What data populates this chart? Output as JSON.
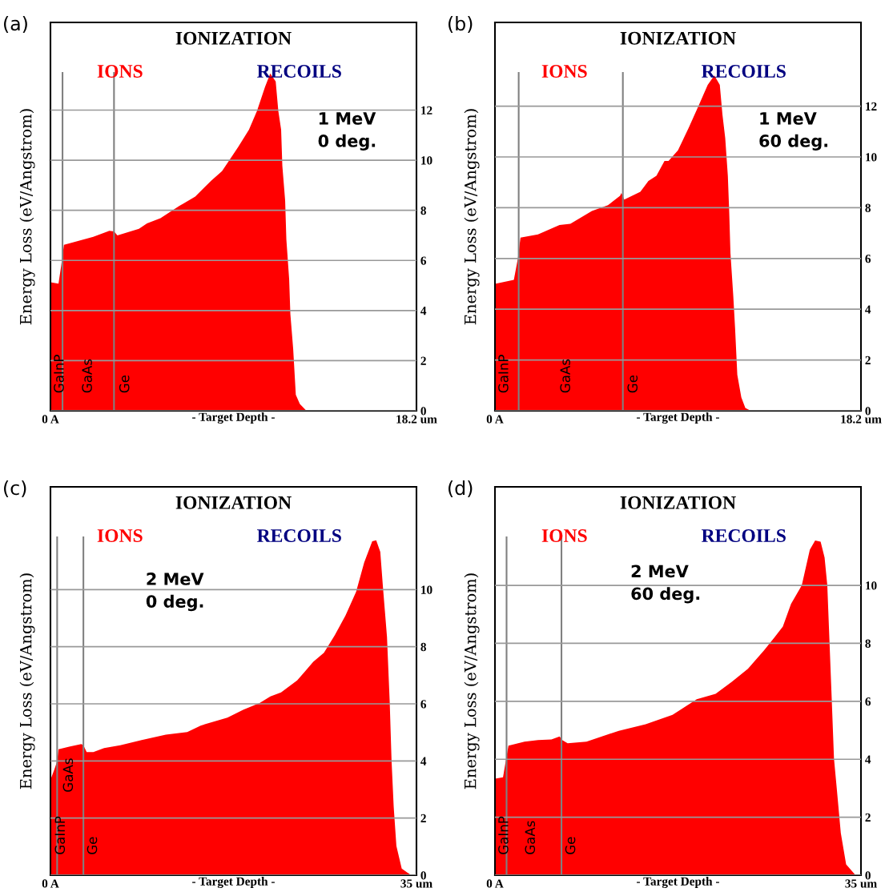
{
  "chart_data": [
    {
      "type": "area",
      "title": "IONIZATION",
      "xlabel": "- Target Depth -",
      "ylabel": "Energy Loss (eV/Angstrom)",
      "xlim": [
        0,
        18.2
      ],
      "xticks": [
        {
          "value": 0,
          "label": "0 A"
        },
        {
          "value": 18.2,
          "label": "18.2 um"
        }
      ],
      "ylim": [
        0,
        15.5
      ],
      "yticks": [
        0,
        2,
        4,
        6,
        8,
        10,
        12
      ],
      "grid": "y",
      "legend": "top",
      "series": [
        {
          "name": "IONS",
          "color": "#ff0000",
          "x": [
            0,
            0.4,
            0.53,
            0.67,
            0.93,
            2.13,
            2.93,
            3.16,
            3.33,
            4.4,
            4.8,
            5.47,
            6.4,
            7.2,
            8.0,
            8.53,
            8.93,
            9.33,
            9.87,
            10.27,
            10.67,
            10.93,
            11.2,
            11.33,
            11.47,
            11.53,
            11.67,
            11.73,
            11.87,
            11.93,
            12.07,
            12.2,
            12.4,
            12.73
          ],
          "values": [
            5.13,
            5.07,
            5.77,
            6.62,
            6.68,
            6.94,
            7.18,
            7.16,
            7.0,
            7.26,
            7.48,
            7.69,
            8.17,
            8.55,
            9.19,
            9.56,
            10.04,
            10.52,
            11.22,
            11.97,
            12.93,
            13.46,
            13.14,
            11.97,
            11.22,
            9.78,
            8.39,
            6.84,
            5.24,
            3.85,
            2.46,
            0.64,
            0.27,
            0
          ]
        }
      ],
      "ref_lines": [
        {
          "axis": "x",
          "value": 0.6,
          "color": "#808080"
        },
        {
          "axis": "x",
          "value": 3.16,
          "color": "#808080"
        }
      ],
      "annotations": [
        "(a)",
        "1 MeV\n0 deg.",
        "RECOILS",
        "GaInP",
        "GaAs",
        "Ge"
      ]
    },
    {
      "type": "area",
      "title": "IONIZATION",
      "xlabel": "- Target Depth -",
      "ylabel": "Energy Loss (eV/Angstrom)",
      "xlim": [
        0,
        18.2
      ],
      "xticks": [
        {
          "value": 0,
          "label": "0 A"
        },
        {
          "value": 18.2,
          "label": "18.2 um"
        }
      ],
      "ylim": [
        0,
        15.3
      ],
      "yticks": [
        0,
        2,
        4,
        6,
        8,
        10,
        12
      ],
      "grid": "y",
      "legend": "top",
      "series": [
        {
          "name": "IONS",
          "color": "#ff0000",
          "x": [
            0,
            0.94,
            1.14,
            1.27,
            2.14,
            3.21,
            3.75,
            4.82,
            5.62,
            6.22,
            6.29,
            6.43,
            7.23,
            7.63,
            8.03,
            8.43,
            8.63,
            9.1,
            9.64,
            10.17,
            10.58,
            10.91,
            11.18,
            11.31,
            11.45,
            11.58,
            11.65,
            11.71,
            11.85,
            11.94,
            12.05,
            12.25,
            12.45,
            12.72
          ],
          "values": [
            5.0,
            5.16,
            6.0,
            6.82,
            6.95,
            7.32,
            7.37,
            7.87,
            8.1,
            8.47,
            8.58,
            8.32,
            8.63,
            9.05,
            9.26,
            9.84,
            9.84,
            10.26,
            11.16,
            12.1,
            12.84,
            13.21,
            12.84,
            11.68,
            10.74,
            9.26,
            7.79,
            6.21,
            4.53,
            3.26,
            1.42,
            0.53,
            0.11,
            0
          ]
        }
      ],
      "ref_lines": [
        {
          "axis": "x",
          "value": 1.18,
          "color": "#808080"
        },
        {
          "axis": "x",
          "value": 6.36,
          "color": "#808080"
        }
      ],
      "annotations": [
        "(b)",
        "1 MeV\n60 deg.",
        "RECOILS",
        "GaInP",
        "GaAs",
        "Ge"
      ]
    },
    {
      "type": "area",
      "title": "IONIZATION",
      "xlabel": "- Target Depth -",
      "ylabel": "Energy Loss (eV/Angstrom)",
      "xlim": [
        0,
        35
      ],
      "xticks": [
        {
          "value": 0,
          "label": "0 A"
        },
        {
          "value": 35,
          "label": "35 um"
        }
      ],
      "ylim": [
        0,
        13.6
      ],
      "yticks": [
        0,
        2,
        4,
        6,
        8,
        10
      ],
      "grid": "y",
      "legend": "top",
      "series": [
        {
          "name": "IONS",
          "color": "#ff0000",
          "x": [
            0,
            0.38,
            0.64,
            0.77,
            1.79,
            2.95,
            3.15,
            3.46,
            4.1,
            5.13,
            6.67,
            8.72,
            11.03,
            13.08,
            14.36,
            16.92,
            18.46,
            20.0,
            21.03,
            22.05,
            23.59,
            24.36,
            25.13,
            26.15,
            27.18,
            28.21,
            29.23,
            30.0,
            30.77,
            31.15,
            31.54,
            31.79,
            32.18,
            32.44,
            32.62,
            32.82,
            33.08,
            33.59,
            34.49
          ],
          "values": [
            3.34,
            3.71,
            3.99,
            4.41,
            4.5,
            4.59,
            4.55,
            4.31,
            4.31,
            4.45,
            4.55,
            4.73,
            4.92,
            5.01,
            5.24,
            5.52,
            5.8,
            6.03,
            6.26,
            6.4,
            6.82,
            7.14,
            7.47,
            7.79,
            8.4,
            9.09,
            9.93,
            10.95,
            11.69,
            11.73,
            11.32,
            10.11,
            8.35,
            6.08,
            3.99,
            2.41,
            1.02,
            0.23,
            0
          ]
        }
      ],
      "ref_lines": [
        {
          "axis": "x",
          "value": 0.64,
          "color": "#808080"
        },
        {
          "axis": "x",
          "value": 3.15,
          "color": "#808080"
        }
      ],
      "annotations": [
        "(c)",
        "2 MeV\n0 deg.",
        "RECOILS",
        "GaInP",
        "GaAs",
        "Ge"
      ]
    },
    {
      "type": "area",
      "title": "IONIZATION",
      "xlabel": "- Target Depth -",
      "ylabel": "Energy Loss (eV/Angstrom)",
      "xlim": [
        0,
        35
      ],
      "xticks": [
        {
          "value": 0,
          "label": "0 A"
        },
        {
          "value": 35,
          "label": "35 um"
        }
      ],
      "ylim": [
        0,
        13.4
      ],
      "yticks": [
        0,
        2,
        4,
        6,
        8,
        10
      ],
      "grid": "y",
      "legend": "top",
      "series": [
        {
          "name": "IONS",
          "color": "#ff0000",
          "x": [
            0,
            0.77,
            1.03,
            1.29,
            2.83,
            4.12,
            5.4,
            6.18,
            6.43,
            6.95,
            8.75,
            11.84,
            14.41,
            16.98,
            19.3,
            21.1,
            22.65,
            24.19,
            25.73,
            26.76,
            27.53,
            28.31,
            29.34,
            30.11,
            30.62,
            31.14,
            31.52,
            31.78,
            32.17,
            32.42,
            32.68,
            33.07,
            33.58,
            34.48
          ],
          "values": [
            3.33,
            3.38,
            3.93,
            4.47,
            4.61,
            4.66,
            4.68,
            4.79,
            4.66,
            4.55,
            4.61,
            4.98,
            5.21,
            5.53,
            6.07,
            6.26,
            6.67,
            7.12,
            7.76,
            8.22,
            8.58,
            9.36,
            10.0,
            11.23,
            11.55,
            11.51,
            10.96,
            10.0,
            6.39,
            4.02,
            3.01,
            1.46,
            0.37,
            0
          ]
        }
      ],
      "ref_lines": [
        {
          "axis": "x",
          "value": 1.11,
          "color": "#808080"
        },
        {
          "axis": "x",
          "value": 6.36,
          "color": "#808080"
        }
      ],
      "annotations": [
        "(d)",
        "2 MeV\n60 deg.",
        "RECOILS",
        "GaInP",
        "GaAs",
        "Ge"
      ]
    }
  ]
}
